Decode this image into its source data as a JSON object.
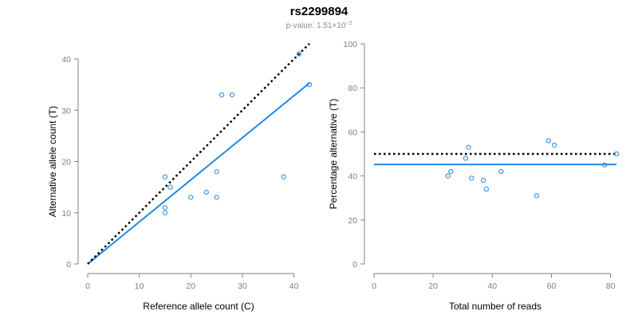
{
  "title": "rs2299894",
  "subtitle_prefix": "p-value: 1.51×10",
  "subtitle_exponent": "−2",
  "chart_data": [
    {
      "type": "scatter",
      "xlabel": "Reference allele count (C)",
      "ylabel": "Alternative allele count (T)",
      "xlim": [
        0,
        43
      ],
      "ylim": [
        0,
        40
      ],
      "xticks": [
        0,
        10,
        20,
        30,
        40
      ],
      "yticks": [
        0,
        10,
        20,
        30,
        40
      ],
      "grid": false,
      "points": [
        {
          "x": 15,
          "y": 17
        },
        {
          "x": 15,
          "y": 11
        },
        {
          "x": 15,
          "y": 10
        },
        {
          "x": 16,
          "y": 15
        },
        {
          "x": 20,
          "y": 13
        },
        {
          "x": 23,
          "y": 14
        },
        {
          "x": 25,
          "y": 18
        },
        {
          "x": 25,
          "y": 13
        },
        {
          "x": 26,
          "y": 33
        },
        {
          "x": 28,
          "y": 33
        },
        {
          "x": 38,
          "y": 17
        },
        {
          "x": 41,
          "y": 41
        },
        {
          "x": 43,
          "y": 35
        }
      ],
      "lines": [
        {
          "style": "solid",
          "color": "#1e88e5",
          "from": [
            0,
            0
          ],
          "to": [
            43,
            35.3
          ]
        },
        {
          "style": "dotted",
          "color": "#000000",
          "from": [
            0,
            0
          ],
          "to": [
            43,
            43
          ]
        }
      ]
    },
    {
      "type": "scatter",
      "xlabel": "Total number of reads",
      "ylabel": "Percentage alternative (T)",
      "xlim": [
        0,
        82
      ],
      "ylim": [
        0,
        100
      ],
      "xticks": [
        0,
        20,
        40,
        60,
        80
      ],
      "yticks": [
        0,
        20,
        40,
        60,
        80,
        100
      ],
      "grid": false,
      "points": [
        {
          "x": 25,
          "y": 40
        },
        {
          "x": 26,
          "y": 42
        },
        {
          "x": 31,
          "y": 48
        },
        {
          "x": 32,
          "y": 53
        },
        {
          "x": 33,
          "y": 39
        },
        {
          "x": 37,
          "y": 38
        },
        {
          "x": 38,
          "y": 34
        },
        {
          "x": 43,
          "y": 42
        },
        {
          "x": 55,
          "y": 31
        },
        {
          "x": 59,
          "y": 56
        },
        {
          "x": 61,
          "y": 54
        },
        {
          "x": 78,
          "y": 45
        },
        {
          "x": 82,
          "y": 50
        }
      ],
      "lines": [
        {
          "style": "solid",
          "color": "#1e88e5",
          "from": [
            0,
            45.2
          ],
          "to": [
            82,
            45.2
          ]
        },
        {
          "style": "dotted",
          "color": "#000000",
          "from": [
            0,
            50
          ],
          "to": [
            82,
            50
          ]
        }
      ]
    }
  ]
}
